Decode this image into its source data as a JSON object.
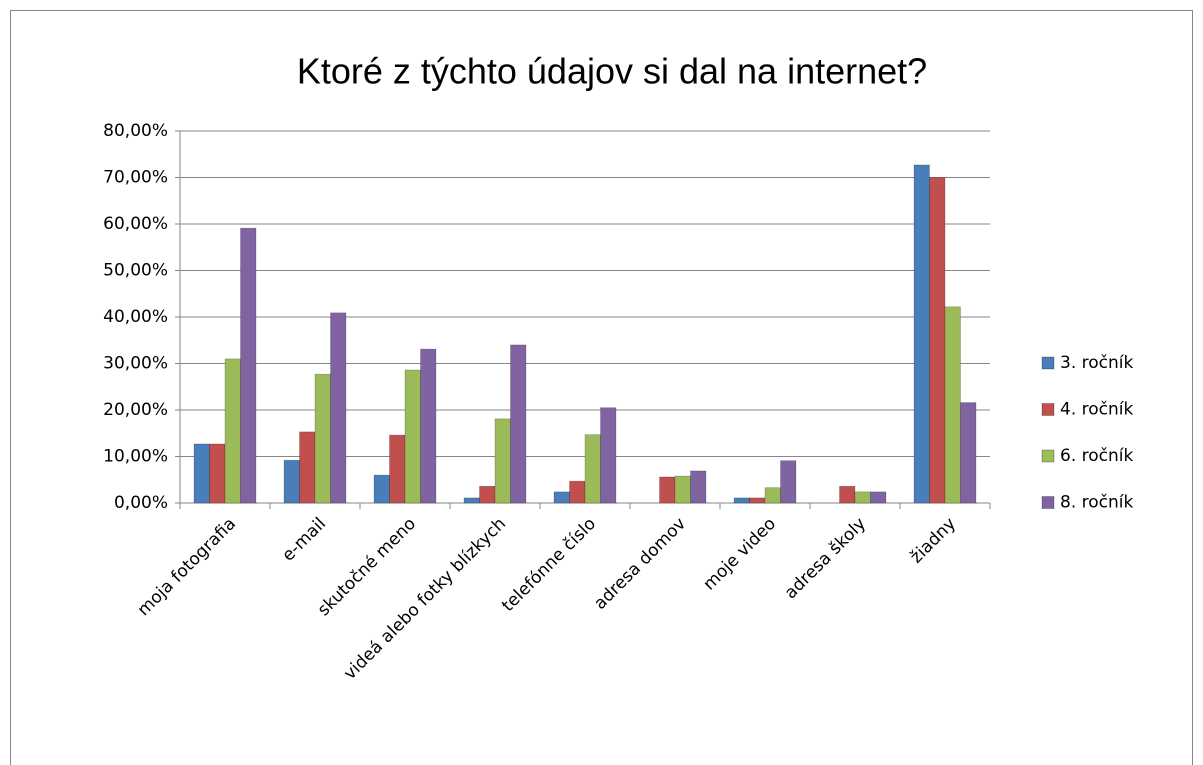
{
  "chart_data": {
    "type": "bar",
    "title": "Ktoré z týchto údajov si dal na internet?",
    "categories": [
      "moja fotografia",
      "e-mail",
      "skutočné meno",
      "videá alebo fotky blízkych",
      "telefónne číslo",
      "adresa domov",
      "moje video",
      "adresa školy",
      "žiadny"
    ],
    "series": [
      {
        "name": "3. ročník",
        "color": "#4a7ebb",
        "values": [
          12.7,
          9.2,
          6.0,
          1.1,
          2.4,
          0,
          1.1,
          0,
          72.7
        ]
      },
      {
        "name": "4. ročník",
        "color": "#c0504d",
        "values": [
          12.7,
          15.3,
          14.6,
          3.6,
          4.7,
          5.6,
          1.1,
          3.6,
          70.0
        ]
      },
      {
        "name": "6. ročník",
        "color": "#9bbb59",
        "values": [
          31.0,
          27.7,
          28.6,
          18.1,
          14.7,
          5.8,
          3.3,
          2.4,
          42.2
        ]
      },
      {
        "name": "8. ročník",
        "color": "#8064a2",
        "values": [
          59.1,
          40.9,
          33.1,
          34.0,
          20.5,
          6.9,
          9.1,
          2.4,
          21.6
        ]
      }
    ],
    "ylim": [
      0,
      80
    ],
    "yticks": [
      {
        "value": 0,
        "label": "0,00%"
      },
      {
        "value": 10,
        "label": "10,00%"
      },
      {
        "value": 20,
        "label": "20,00%"
      },
      {
        "value": 30,
        "label": "30,00%"
      },
      {
        "value": 40,
        "label": "40,00%"
      },
      {
        "value": 50,
        "label": "50,00%"
      },
      {
        "value": 60,
        "label": "60,00%"
      },
      {
        "value": 70,
        "label": "70,00%"
      },
      {
        "value": 80,
        "label": "80,00%"
      }
    ],
    "grid": true,
    "legend": "right"
  }
}
